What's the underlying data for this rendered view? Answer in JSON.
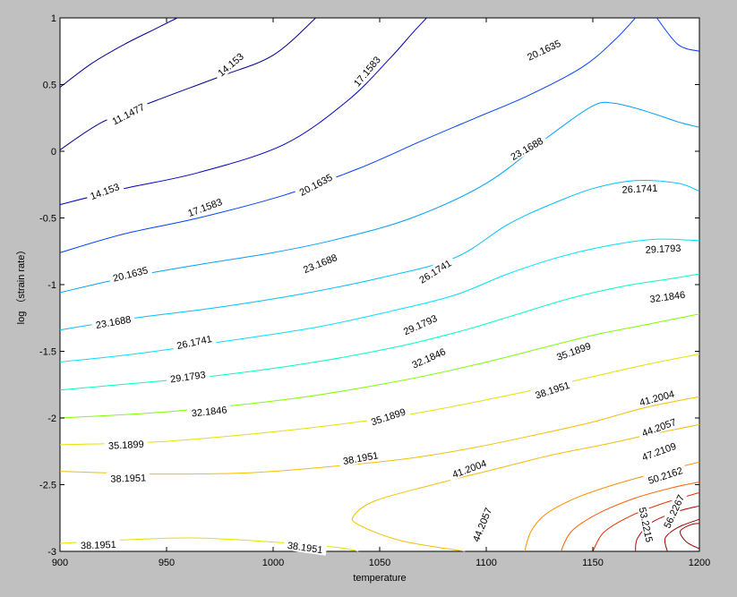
{
  "chart_data": {
    "type": "contour",
    "title": "",
    "xlabel": "temperature",
    "ylabel": "log （strain rate）",
    "xlim": [
      900,
      1200
    ],
    "ylim": [
      -3,
      1
    ],
    "xticks": [
      {
        "value": 900,
        "label": "900"
      },
      {
        "value": 950,
        "label": "950"
      },
      {
        "value": 1000,
        "label": "1000"
      },
      {
        "value": 1050,
        "label": "1050"
      },
      {
        "value": 1100,
        "label": "1100"
      },
      {
        "value": 1150,
        "label": "1150"
      },
      {
        "value": 1200,
        "label": "1200"
      }
    ],
    "yticks": [
      {
        "value": 1,
        "label": "1"
      },
      {
        "value": 0.5,
        "label": "0.5"
      },
      {
        "value": 0,
        "label": "0"
      },
      {
        "value": -0.5,
        "label": "-0.5"
      },
      {
        "value": -1,
        "label": "-1"
      },
      {
        "value": -1.5,
        "label": "-1.5"
      },
      {
        "value": -2,
        "label": "-2"
      },
      {
        "value": -2.5,
        "label": "-2.5"
      },
      {
        "value": -3,
        "label": "-3"
      }
    ],
    "grid": false,
    "legend": "none",
    "contours": [
      {
        "level": "11.1477",
        "color": "#00008f",
        "points": [
          [
            900,
            0.48
          ],
          [
            915,
            0.66
          ],
          [
            930,
            0.8
          ],
          [
            945,
            0.92
          ],
          [
            955,
            1.0
          ]
        ]
      },
      {
        "level": "14.153",
        "color": "#00008f",
        "points": [
          [
            900,
            0.01
          ],
          [
            920,
            0.22
          ],
          [
            945,
            0.38
          ],
          [
            975,
            0.56
          ],
          [
            1000,
            0.72
          ],
          [
            1020,
            1.0
          ]
        ]
      },
      {
        "level": "17.1583",
        "color": "#0000bf",
        "points": [
          [
            900,
            -0.4
          ],
          [
            930,
            -0.28
          ],
          [
            965,
            -0.16
          ],
          [
            1005,
            0.05
          ],
          [
            1035,
            0.38
          ],
          [
            1055,
            0.7
          ],
          [
            1065,
            0.88
          ],
          [
            1072,
            1.0
          ]
        ]
      },
      {
        "level": "20.1635",
        "color": "#0040ff",
        "points": [
          [
            900,
            -0.76
          ],
          [
            930,
            -0.62
          ],
          [
            965,
            -0.5
          ],
          [
            1005,
            -0.33
          ],
          [
            1040,
            -0.13
          ],
          [
            1070,
            0.08
          ],
          [
            1095,
            0.25
          ],
          [
            1120,
            0.42
          ],
          [
            1145,
            0.63
          ],
          [
            1160,
            0.83
          ],
          [
            1170,
            1.0
          ]
        ]
      },
      {
        "level": "20.1635",
        "color": "#0040ff",
        "points": [
          [
            1180,
            1.0
          ],
          [
            1190,
            0.8
          ],
          [
            1200,
            0.75
          ]
        ]
      },
      {
        "level": "23.1688",
        "color": "#00a0ff",
        "points": [
          [
            900,
            -1.06
          ],
          [
            930,
            -0.95
          ],
          [
            965,
            -0.85
          ],
          [
            1000,
            -0.76
          ],
          [
            1030,
            -0.66
          ],
          [
            1065,
            -0.5
          ],
          [
            1100,
            -0.24
          ],
          [
            1130,
            0.12
          ],
          [
            1150,
            0.34
          ],
          [
            1160,
            0.36
          ],
          [
            1175,
            0.3
          ],
          [
            1190,
            0.22
          ],
          [
            1200,
            0.18
          ]
        ]
      },
      {
        "level": "26.1741",
        "color": "#00c0ff",
        "points": [
          [
            900,
            -1.34
          ],
          [
            935,
            -1.25
          ],
          [
            970,
            -1.18
          ],
          [
            1010,
            -1.08
          ],
          [
            1050,
            -0.95
          ],
          [
            1085,
            -0.8
          ],
          [
            1110,
            -0.55
          ],
          [
            1130,
            -0.4
          ],
          [
            1150,
            -0.28
          ],
          [
            1170,
            -0.22
          ],
          [
            1190,
            -0.24
          ],
          [
            1200,
            -0.3
          ]
        ]
      },
      {
        "level": "29.1793",
        "color": "#00e0ff",
        "points": [
          [
            900,
            -1.58
          ],
          [
            935,
            -1.52
          ],
          [
            975,
            -1.43
          ],
          [
            1020,
            -1.32
          ],
          [
            1055,
            -1.2
          ],
          [
            1085,
            -1.08
          ],
          [
            1110,
            -0.92
          ],
          [
            1135,
            -0.79
          ],
          [
            1160,
            -0.7
          ],
          [
            1180,
            -0.66
          ],
          [
            1200,
            -0.67
          ]
        ]
      },
      {
        "level": "32.1846",
        "color": "#00ffc0",
        "points": [
          [
            900,
            -1.79
          ],
          [
            935,
            -1.74
          ],
          [
            975,
            -1.68
          ],
          [
            1020,
            -1.58
          ],
          [
            1060,
            -1.46
          ],
          [
            1090,
            -1.34
          ],
          [
            1115,
            -1.22
          ],
          [
            1140,
            -1.1
          ],
          [
            1165,
            -1.01
          ],
          [
            1185,
            -0.96
          ],
          [
            1200,
            -0.92
          ]
        ]
      },
      {
        "level": "35.1899",
        "color": "#80ff00",
        "points": [
          [
            900,
            -2.0
          ],
          [
            945,
            -1.96
          ],
          [
            985,
            -1.9
          ],
          [
            1020,
            -1.83
          ],
          [
            1060,
            -1.72
          ],
          [
            1095,
            -1.6
          ],
          [
            1125,
            -1.48
          ],
          [
            1150,
            -1.38
          ],
          [
            1175,
            -1.3
          ],
          [
            1200,
            -1.22
          ]
        ]
      },
      {
        "level": "38.1951",
        "color": "#e8e000",
        "points": [
          [
            900,
            -2.2
          ],
          [
            945,
            -2.18
          ],
          [
            990,
            -2.12
          ],
          [
            1030,
            -2.05
          ],
          [
            1065,
            -1.97
          ],
          [
            1095,
            -1.88
          ],
          [
            1125,
            -1.78
          ],
          [
            1150,
            -1.69
          ],
          [
            1175,
            -1.6
          ],
          [
            1200,
            -1.52
          ]
        ]
      },
      {
        "level": "41.2004",
        "color": "#f0c000",
        "points": [
          [
            900,
            -2.4
          ],
          [
            945,
            -2.42
          ],
          [
            990,
            -2.41
          ],
          [
            1030,
            -2.36
          ],
          [
            1065,
            -2.3
          ],
          [
            1095,
            -2.22
          ],
          [
            1125,
            -2.12
          ],
          [
            1150,
            -2.03
          ],
          [
            1175,
            -1.92
          ],
          [
            1200,
            -1.84
          ]
        ]
      },
      {
        "level": "38.1951",
        "color": "#e8e000",
        "points": [
          [
            900,
            -2.94
          ],
          [
            935,
            -2.91
          ],
          [
            965,
            -2.9
          ],
          [
            1000,
            -2.93
          ],
          [
            1030,
            -2.97
          ],
          [
            1040,
            -3.0
          ]
        ]
      },
      {
        "level": "41.2004",
        "color": "#f0c000",
        "points": [
          [
            1090,
            -3.0
          ],
          [
            1060,
            -2.92
          ],
          [
            1040,
            -2.8
          ],
          [
            1038,
            -2.73
          ],
          [
            1048,
            -2.62
          ],
          [
            1075,
            -2.5
          ],
          [
            1105,
            -2.38
          ],
          [
            1130,
            -2.28
          ],
          [
            1155,
            -2.2
          ],
          [
            1175,
            -2.13
          ],
          [
            1200,
            -2.05
          ]
        ]
      },
      {
        "level": "44.2057",
        "color": "#ff9000",
        "points": [
          [
            1118,
            -3.0
          ],
          [
            1121,
            -2.85
          ],
          [
            1128,
            -2.72
          ],
          [
            1142,
            -2.6
          ],
          [
            1160,
            -2.5
          ],
          [
            1180,
            -2.41
          ],
          [
            1200,
            -2.33
          ]
        ]
      },
      {
        "level": "47.2109",
        "color": "#ff6000",
        "points": [
          [
            1135,
            -3.0
          ],
          [
            1140,
            -2.85
          ],
          [
            1152,
            -2.72
          ],
          [
            1170,
            -2.6
          ],
          [
            1188,
            -2.52
          ],
          [
            1200,
            -2.48
          ]
        ]
      },
      {
        "level": "50.2162",
        "color": "#e03000",
        "points": [
          [
            1150,
            -3.0
          ],
          [
            1155,
            -2.86
          ],
          [
            1167,
            -2.74
          ],
          [
            1183,
            -2.64
          ],
          [
            1200,
            -2.56
          ]
        ]
      },
      {
        "level": "53.2215",
        "color": "#c00000",
        "points": [
          [
            1170,
            -3.0
          ],
          [
            1171,
            -2.9
          ],
          [
            1178,
            -2.78
          ],
          [
            1190,
            -2.7
          ],
          [
            1200,
            -2.66
          ]
        ]
      },
      {
        "level": "56.2267",
        "color": "#a00000",
        "points": [
          [
            1185,
            -3.0
          ],
          [
            1184,
            -2.9
          ],
          [
            1190,
            -2.82
          ],
          [
            1200,
            -2.76
          ]
        ]
      },
      {
        "level": "56.2267",
        "color": "#a00000",
        "points": [
          [
            1200,
            -2.98
          ],
          [
            1194,
            -2.93
          ],
          [
            1191,
            -2.85
          ],
          [
            1196,
            -2.8
          ],
          [
            1200,
            -2.79
          ]
        ]
      }
    ],
    "contour_labels": [
      {
        "text": "11.1477",
        "x": 932,
        "y": 0.28,
        "angle": -27
      },
      {
        "text": "14.153",
        "x": 980,
        "y": 0.65,
        "angle": -40
      },
      {
        "text": "17.1583",
        "x": 1044,
        "y": 0.6,
        "angle": -50
      },
      {
        "text": "20.1635",
        "x": 1127,
        "y": 0.76,
        "angle": -25
      },
      {
        "text": "14.153",
        "x": 921,
        "y": -0.3,
        "angle": -20
      },
      {
        "text": "17.1583",
        "x": 968,
        "y": -0.42,
        "angle": -20
      },
      {
        "text": "20.1635",
        "x": 1020,
        "y": -0.25,
        "angle": -28
      },
      {
        "text": "23.1688",
        "x": 1119,
        "y": 0.02,
        "angle": -30
      },
      {
        "text": "20.1635",
        "x": 933,
        "y": -0.92,
        "angle": -14
      },
      {
        "text": "23.1688",
        "x": 1022,
        "y": -0.84,
        "angle": -22
      },
      {
        "text": "26.1741",
        "x": 1076,
        "y": -0.9,
        "angle": -32
      },
      {
        "text": "26.1741",
        "x": 1172,
        "y": -0.28,
        "angle": -3
      },
      {
        "text": "23.1688",
        "x": 925,
        "y": -1.28,
        "angle": -10
      },
      {
        "text": "26.1741",
        "x": 963,
        "y": -1.43,
        "angle": -12
      },
      {
        "text": "29.1793",
        "x": 1069,
        "y": -1.3,
        "angle": -24
      },
      {
        "text": "29.1793",
        "x": 1183,
        "y": -0.73,
        "angle": -3
      },
      {
        "text": "29.1793",
        "x": 960,
        "y": -1.69,
        "angle": -8
      },
      {
        "text": "32.1846",
        "x": 1073,
        "y": -1.55,
        "angle": -24
      },
      {
        "text": "32.1846",
        "x": 1185,
        "y": -1.09,
        "angle": -8
      },
      {
        "text": "32.1846",
        "x": 970,
        "y": -1.95,
        "angle": -6
      },
      {
        "text": "35.1899",
        "x": 1054,
        "y": -1.99,
        "angle": -18
      },
      {
        "text": "35.1899",
        "x": 1141,
        "y": -1.5,
        "angle": -20
      },
      {
        "text": "35.1899",
        "x": 931,
        "y": -2.2,
        "angle": -3
      },
      {
        "text": "38.1951",
        "x": 1041,
        "y": -2.3,
        "angle": -10
      },
      {
        "text": "38.1951",
        "x": 1131,
        "y": -1.79,
        "angle": -18
      },
      {
        "text": "41.2004",
        "x": 1180,
        "y": -1.85,
        "angle": -15
      },
      {
        "text": "38.1951",
        "x": 932,
        "y": -2.45,
        "angle": -2
      },
      {
        "text": "41.2004",
        "x": 1092,
        "y": -2.38,
        "angle": -20
      },
      {
        "text": "44.2057",
        "x": 1181,
        "y": -2.07,
        "angle": -20
      },
      {
        "text": "47.2109",
        "x": 1181,
        "y": -2.25,
        "angle": -20
      },
      {
        "text": "50.2162",
        "x": 1184,
        "y": -2.43,
        "angle": -18
      },
      {
        "text": "44.2057",
        "x": 1098,
        "y": -2.8,
        "angle": -68
      },
      {
        "text": "53.2215",
        "x": 1175,
        "y": -2.8,
        "angle": 78
      },
      {
        "text": "56.2267",
        "x": 1188,
        "y": -2.7,
        "angle": -65
      },
      {
        "text": "38.1951",
        "x": 918,
        "y": -2.95,
        "angle": -2
      },
      {
        "text": "38.1951",
        "x": 1015,
        "y": -2.97,
        "angle": 8
      }
    ]
  }
}
